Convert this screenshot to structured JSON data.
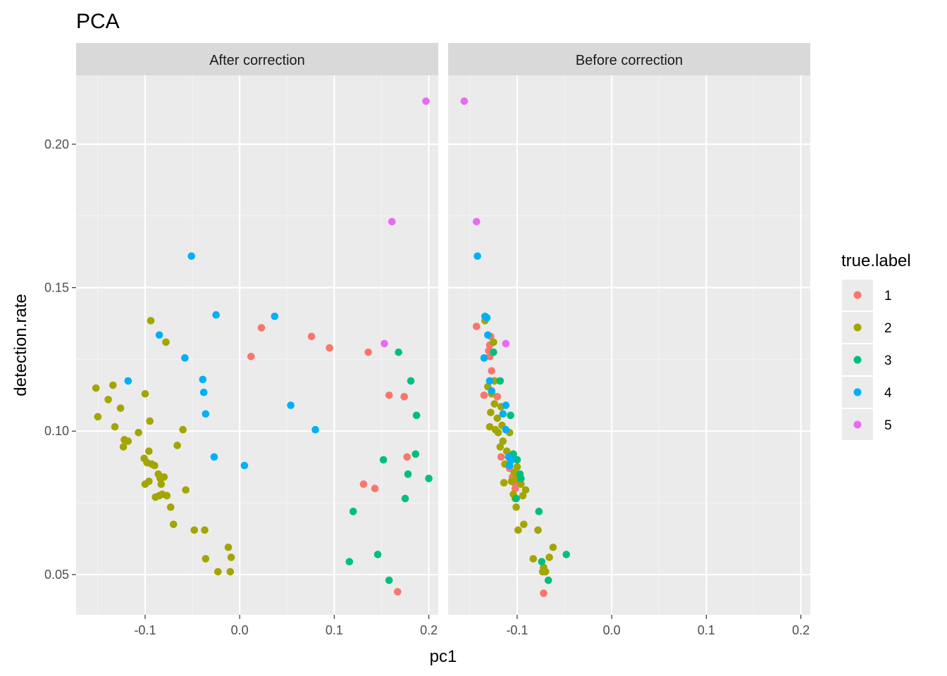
{
  "chart_data": {
    "type": "scatter",
    "title": "PCA",
    "xlabel": "pc1",
    "ylabel": "detection.rate",
    "x_ticks": [
      -0.1,
      0.0,
      0.1,
      0.2
    ],
    "x_tick_labels": [
      "-0.1",
      "0.0",
      "0.1",
      "0.2"
    ],
    "y_ticks": [
      0.05,
      0.1,
      0.15,
      0.2
    ],
    "y_tick_labels": [
      "0.05",
      "0.10",
      "0.15",
      "0.20"
    ],
    "xlim": [
      -0.173,
      0.21
    ],
    "ylim": [
      0.036,
      0.224
    ],
    "grid": true,
    "legend": {
      "title": "true.label",
      "placement": "right",
      "entries": [
        {
          "label": "1",
          "color": "#F8766D"
        },
        {
          "label": "2",
          "color": "#A3A500"
        },
        {
          "label": "3",
          "color": "#00BF7D"
        },
        {
          "label": "4",
          "color": "#00B0F6"
        },
        {
          "label": "5",
          "color": "#E76BF3"
        }
      ]
    },
    "colors": {
      "panel_background": "#EBEBEB",
      "strip_background": "#D9D9D9",
      "grid_major": "#FFFFFF",
      "grid_minor": "#F5F5F5"
    },
    "panels": [
      {
        "name": "After correction",
        "series": [
          {
            "label": "1",
            "points": [
              [
                0.012,
                0.126
              ],
              [
                0.023,
                0.136
              ],
              [
                0.076,
                0.133
              ],
              [
                0.095,
                0.129
              ],
              [
                0.136,
                0.1275
              ],
              [
                0.158,
                0.1125
              ],
              [
                0.174,
                0.112
              ],
              [
                0.177,
                0.091
              ],
              [
                0.131,
                0.0815
              ],
              [
                0.143,
                0.08
              ],
              [
                0.167,
                0.044
              ]
            ]
          },
          {
            "label": "2",
            "points": [
              [
                -0.152,
                0.115
              ],
              [
                -0.15,
                0.105
              ],
              [
                -0.139,
                0.111
              ],
              [
                -0.134,
                0.116
              ],
              [
                -0.132,
                0.1015
              ],
              [
                -0.126,
                0.108
              ],
              [
                -0.123,
                0.0945
              ],
              [
                -0.122,
                0.097
              ],
              [
                -0.118,
                0.0965
              ],
              [
                -0.107,
                0.0995
              ],
              [
                -0.101,
                0.0905
              ],
              [
                -0.1,
                0.113
              ],
              [
                -0.1,
                0.0815
              ],
              [
                -0.098,
                0.089
              ],
              [
                -0.096,
                0.0825
              ],
              [
                -0.096,
                0.093
              ],
              [
                -0.095,
                0.1035
              ],
              [
                -0.094,
                0.1385
              ],
              [
                -0.093,
                0.0885
              ],
              [
                -0.09,
                0.088
              ],
              [
                -0.089,
                0.077
              ],
              [
                -0.086,
                0.085
              ],
              [
                -0.085,
                0.0775
              ],
              [
                -0.084,
                0.0835
              ],
              [
                -0.083,
                0.0815
              ],
              [
                -0.082,
                0.078
              ],
              [
                -0.08,
                0.084
              ],
              [
                -0.078,
                0.131
              ],
              [
                -0.077,
                0.0775
              ],
              [
                -0.073,
                0.0735
              ],
              [
                -0.07,
                0.0675
              ],
              [
                -0.066,
                0.095
              ],
              [
                -0.06,
                0.1005
              ],
              [
                -0.057,
                0.0795
              ],
              [
                -0.048,
                0.0655
              ],
              [
                -0.037,
                0.0655
              ],
              [
                -0.036,
                0.0555
              ],
              [
                -0.023,
                0.051
              ],
              [
                -0.012,
                0.0595
              ],
              [
                -0.01,
                0.051
              ],
              [
                -0.009,
                0.056
              ]
            ]
          },
          {
            "label": "3",
            "points": [
              [
                0.116,
                0.0545
              ],
              [
                0.12,
                0.072
              ],
              [
                0.146,
                0.057
              ],
              [
                0.152,
                0.09
              ],
              [
                0.158,
                0.048
              ],
              [
                0.168,
                0.1275
              ],
              [
                0.175,
                0.0765
              ],
              [
                0.178,
                0.085
              ],
              [
                0.181,
                0.1175
              ],
              [
                0.186,
                0.092
              ],
              [
                0.187,
                0.1055
              ],
              [
                0.2,
                0.0835
              ]
            ]
          },
          {
            "label": "4",
            "points": [
              [
                -0.118,
                0.1175
              ],
              [
                -0.085,
                0.1335
              ],
              [
                -0.058,
                0.1255
              ],
              [
                -0.051,
                0.161
              ],
              [
                -0.039,
                0.118
              ],
              [
                -0.038,
                0.1135
              ],
              [
                -0.036,
                0.106
              ],
              [
                -0.027,
                0.091
              ],
              [
                -0.025,
                0.1405
              ],
              [
                0.005,
                0.088
              ],
              [
                0.037,
                0.14
              ],
              [
                0.054,
                0.109
              ],
              [
                0.08,
                0.1005
              ]
            ]
          },
          {
            "label": "5",
            "points": [
              [
                0.153,
                0.1305
              ],
              [
                0.161,
                0.173
              ],
              [
                0.197,
                0.215
              ]
            ]
          }
        ]
      },
      {
        "name": "Before correction",
        "series": [
          {
            "label": "1",
            "points": [
              [
                -0.143,
                0.1365
              ],
              [
                -0.135,
                0.1125
              ],
              [
                -0.13,
                0.128
              ],
              [
                -0.129,
                0.13
              ],
              [
                -0.128,
                0.133
              ],
              [
                -0.129,
                0.126
              ],
              [
                -0.127,
                0.121
              ],
              [
                -0.124,
                0.1175
              ],
              [
                -0.121,
                0.112
              ],
              [
                -0.117,
                0.091
              ],
              [
                -0.108,
                0.087
              ],
              [
                -0.105,
                0.084
              ],
              [
                -0.103,
                0.082
              ],
              [
                -0.102,
                0.08
              ],
              [
                -0.072,
                0.0435
              ]
            ]
          },
          {
            "label": "2",
            "points": [
              [
                -0.134,
                0.1385
              ],
              [
                -0.131,
                0.1155
              ],
              [
                -0.129,
                0.1015
              ],
              [
                -0.128,
                0.1065
              ],
              [
                -0.127,
                0.113
              ],
              [
                -0.125,
                0.131
              ],
              [
                -0.124,
                0.1095
              ],
              [
                -0.124,
                0.1175
              ],
              [
                -0.123,
                0.1005
              ],
              [
                -0.121,
                0.1045
              ],
              [
                -0.12,
                0.0995
              ],
              [
                -0.118,
                0.0945
              ],
              [
                -0.117,
                0.1085
              ],
              [
                -0.116,
                0.102
              ],
              [
                -0.115,
                0.0965
              ],
              [
                -0.114,
                0.082
              ],
              [
                -0.113,
                0.0885
              ],
              [
                -0.111,
                0.093
              ],
              [
                -0.108,
                0.0995
              ],
              [
                -0.107,
                0.0895
              ],
              [
                -0.106,
                0.0825
              ],
              [
                -0.105,
                0.091
              ],
              [
                -0.104,
                0.078
              ],
              [
                -0.103,
                0.0855
              ],
              [
                -0.102,
                0.0765
              ],
              [
                -0.101,
                0.0735
              ],
              [
                -0.1,
                0.0835
              ],
              [
                -0.1,
                0.0875
              ],
              [
                -0.099,
                0.0655
              ],
              [
                -0.096,
                0.0815
              ],
              [
                -0.094,
                0.0775
              ],
              [
                -0.093,
                0.0675
              ],
              [
                -0.091,
                0.0795
              ],
              [
                -0.083,
                0.0555
              ],
              [
                -0.078,
                0.0655
              ],
              [
                -0.073,
                0.051
              ],
              [
                -0.072,
                0.0525
              ],
              [
                -0.07,
                0.051
              ],
              [
                -0.066,
                0.056
              ],
              [
                -0.062,
                0.0595
              ]
            ]
          },
          {
            "label": "3",
            "points": [
              [
                -0.125,
                0.1275
              ],
              [
                -0.118,
                0.1175
              ],
              [
                -0.107,
                0.1055
              ],
              [
                -0.104,
                0.092
              ],
              [
                -0.101,
                0.0765
              ],
              [
                -0.1,
                0.09
              ],
              [
                -0.097,
                0.085
              ],
              [
                -0.096,
                0.0835
              ],
              [
                -0.077,
                0.072
              ],
              [
                -0.074,
                0.0545
              ],
              [
                -0.067,
                0.048
              ],
              [
                -0.048,
                0.057
              ]
            ]
          },
          {
            "label": "4",
            "points": [
              [
                -0.142,
                0.161
              ],
              [
                -0.135,
                0.1255
              ],
              [
                -0.134,
                0.14
              ],
              [
                -0.132,
                0.1395
              ],
              [
                -0.131,
                0.1335
              ],
              [
                -0.129,
                0.1175
              ],
              [
                -0.127,
                0.114
              ],
              [
                -0.115,
                0.106
              ],
              [
                -0.112,
                0.109
              ],
              [
                -0.112,
                0.1005
              ],
              [
                -0.109,
                0.091
              ],
              [
                -0.108,
                0.088
              ],
              [
                -0.106,
                0.09
              ]
            ]
          },
          {
            "label": "5",
            "points": [
              [
                -0.156,
                0.215
              ],
              [
                -0.143,
                0.173
              ],
              [
                -0.112,
                0.1305
              ]
            ]
          }
        ]
      }
    ]
  }
}
